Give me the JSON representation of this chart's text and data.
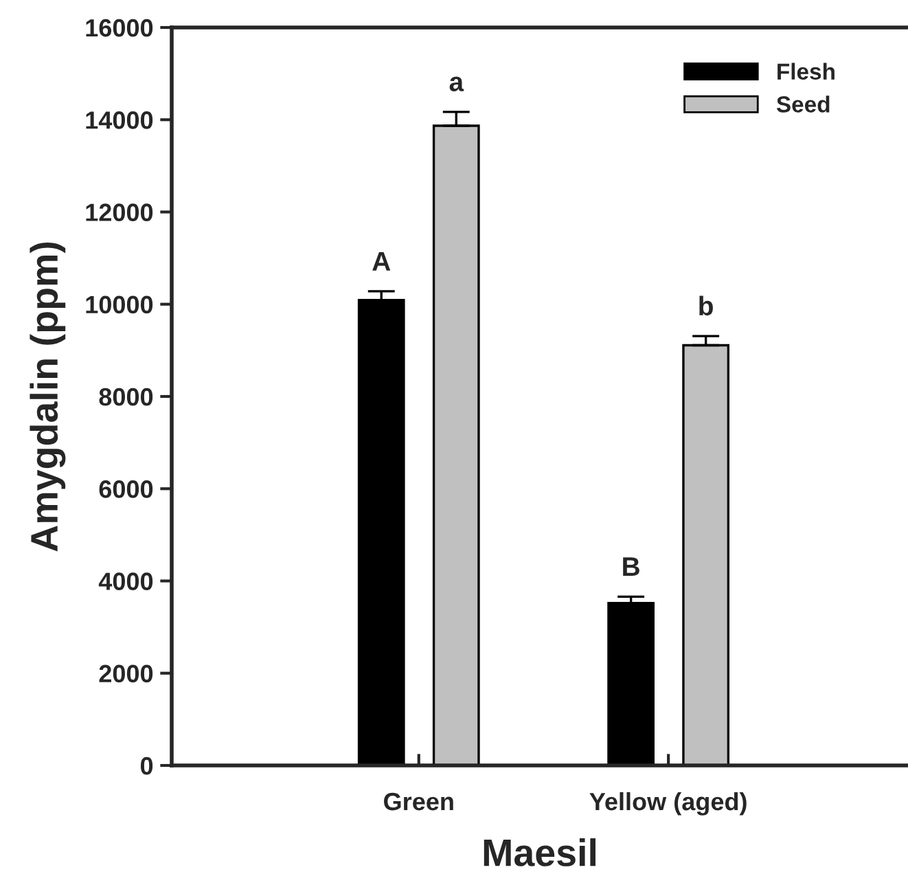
{
  "chart_data": {
    "type": "bar",
    "xlabel": "Maesil",
    "ylabel": "Amygdalin (ppm)",
    "categories": [
      "Green",
      "Yellow (aged)"
    ],
    "series": [
      {
        "name": "Flesh",
        "color": "#000000",
        "values": [
          10090,
          3520
        ],
        "errors": [
          190,
          140
        ]
      },
      {
        "name": "Seed",
        "color": "#c0c0c0",
        "values": [
          13870,
          9110
        ],
        "errors": [
          300,
          200
        ]
      }
    ],
    "ylim": [
      0,
      16000
    ],
    "yticks": [
      0,
      2000,
      4000,
      6000,
      8000,
      10000,
      12000,
      14000,
      16000
    ],
    "legend": "top right",
    "grid": false,
    "annotations": [
      "A",
      "a",
      "B",
      "b"
    ]
  }
}
